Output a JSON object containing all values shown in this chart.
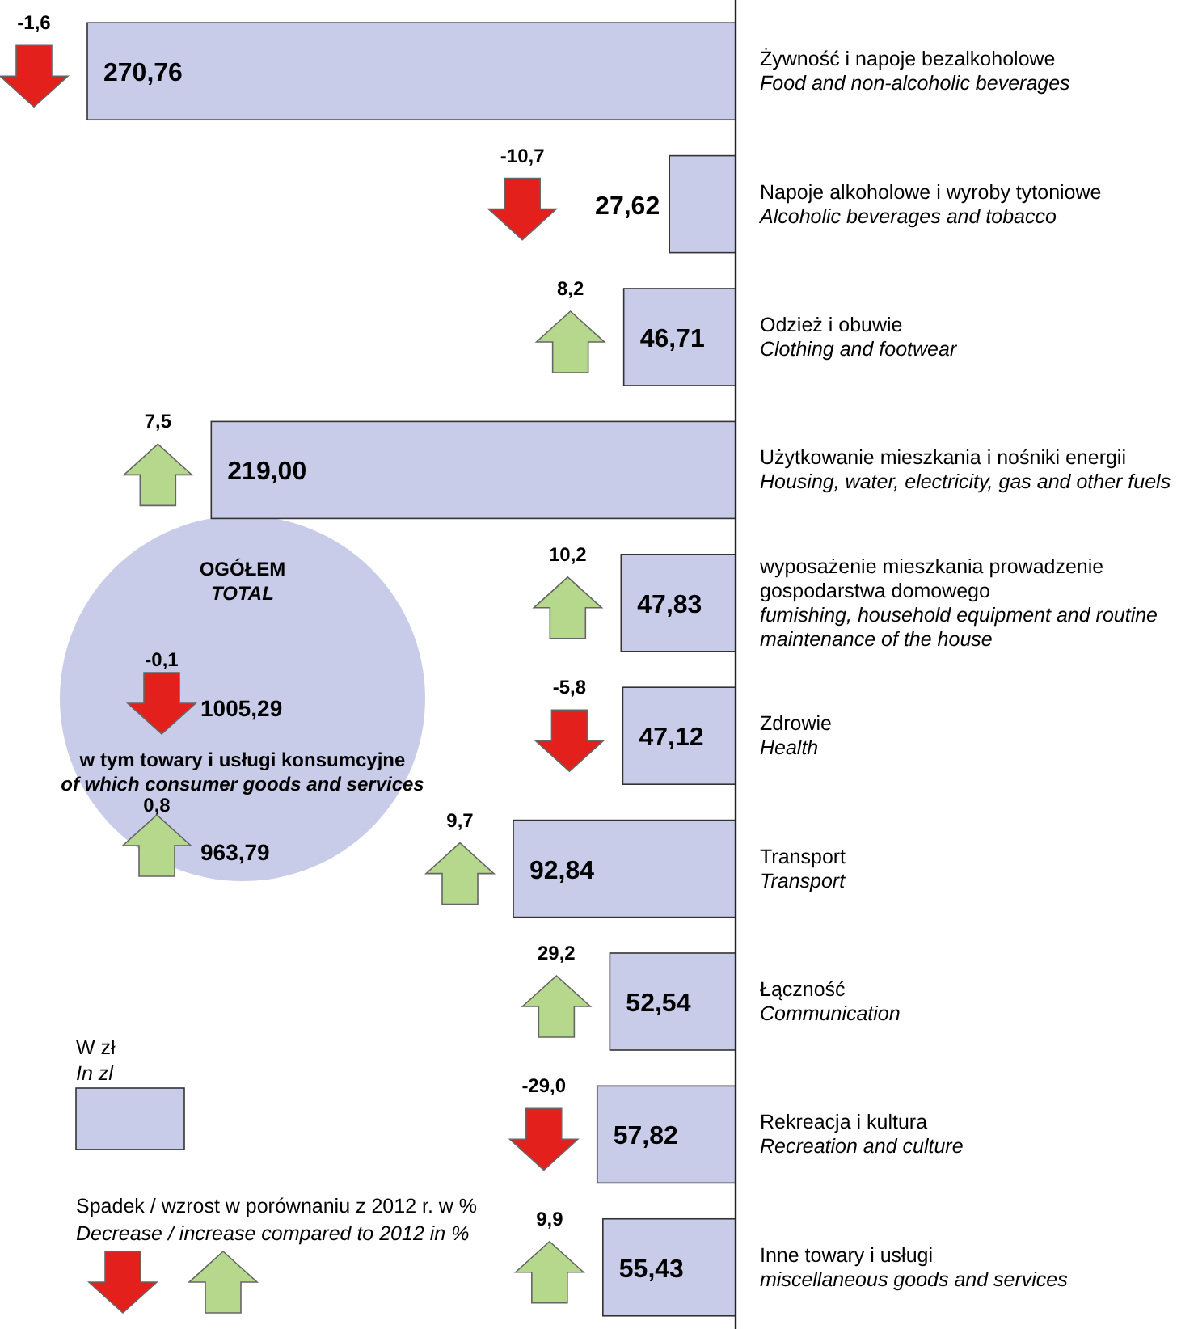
{
  "chart_data": {
    "type": "bar",
    "orientation": "horizontal",
    "categories": [
      "Żywność i napoje bezalkoholowe\nFood and non-alcoholic beverages",
      "Napoje alkoholowe i wyroby tytoniowe\nAlcoholic beverages and tobacco",
      "Odzież i obuwie\nClothing and footwear",
      "Użytkowanie mieszkania i nośniki energii\nHousing, water, electricity, gas and other fuels",
      "wyposażenie mieszkania  prowadzenie\ngospodarstwa domowego\nfumishing, household equipment and routine\nmaintenance of the house",
      "Zdrowie\nHealth",
      "Transport\nTransport",
      "Łączność\nCommunication",
      "Rekreacja i kultura\nRecreation and culture",
      "Inne towary i usługi\nmiscellaneous goods and services"
    ],
    "series": [
      {
        "name": "W zł\nIn zl",
        "color": "#c9cce8",
        "values": [
          270.76,
          27.62,
          46.71,
          219.0,
          47.83,
          47.12,
          92.84,
          52.54,
          57.82,
          55.43
        ],
        "value_labels": [
          "270,76",
          "27,62",
          "46,71",
          "219,00",
          "47,83",
          "47,12",
          "92,84",
          "52,54",
          "57,82",
          "55,43"
        ]
      }
    ],
    "legend": "bottom left",
    "annotations": [
      "-1,6",
      "-10,7",
      "8,2",
      "7,5",
      "10,2",
      "-5,8",
      "9,7",
      "29,2",
      "-29,0",
      "9,9",
      "OGÓŁEM",
      "TOTAL",
      "-0,1",
      "1005,29",
      "w tym towary i usługi konsumcyjne",
      "of which consumer goods and services",
      "0,8",
      "963,79",
      "Spadek / wzrost w porównaniu z 2012 r. w %",
      "Decrease / increase compared to 2012 in %"
    ]
  }
}
